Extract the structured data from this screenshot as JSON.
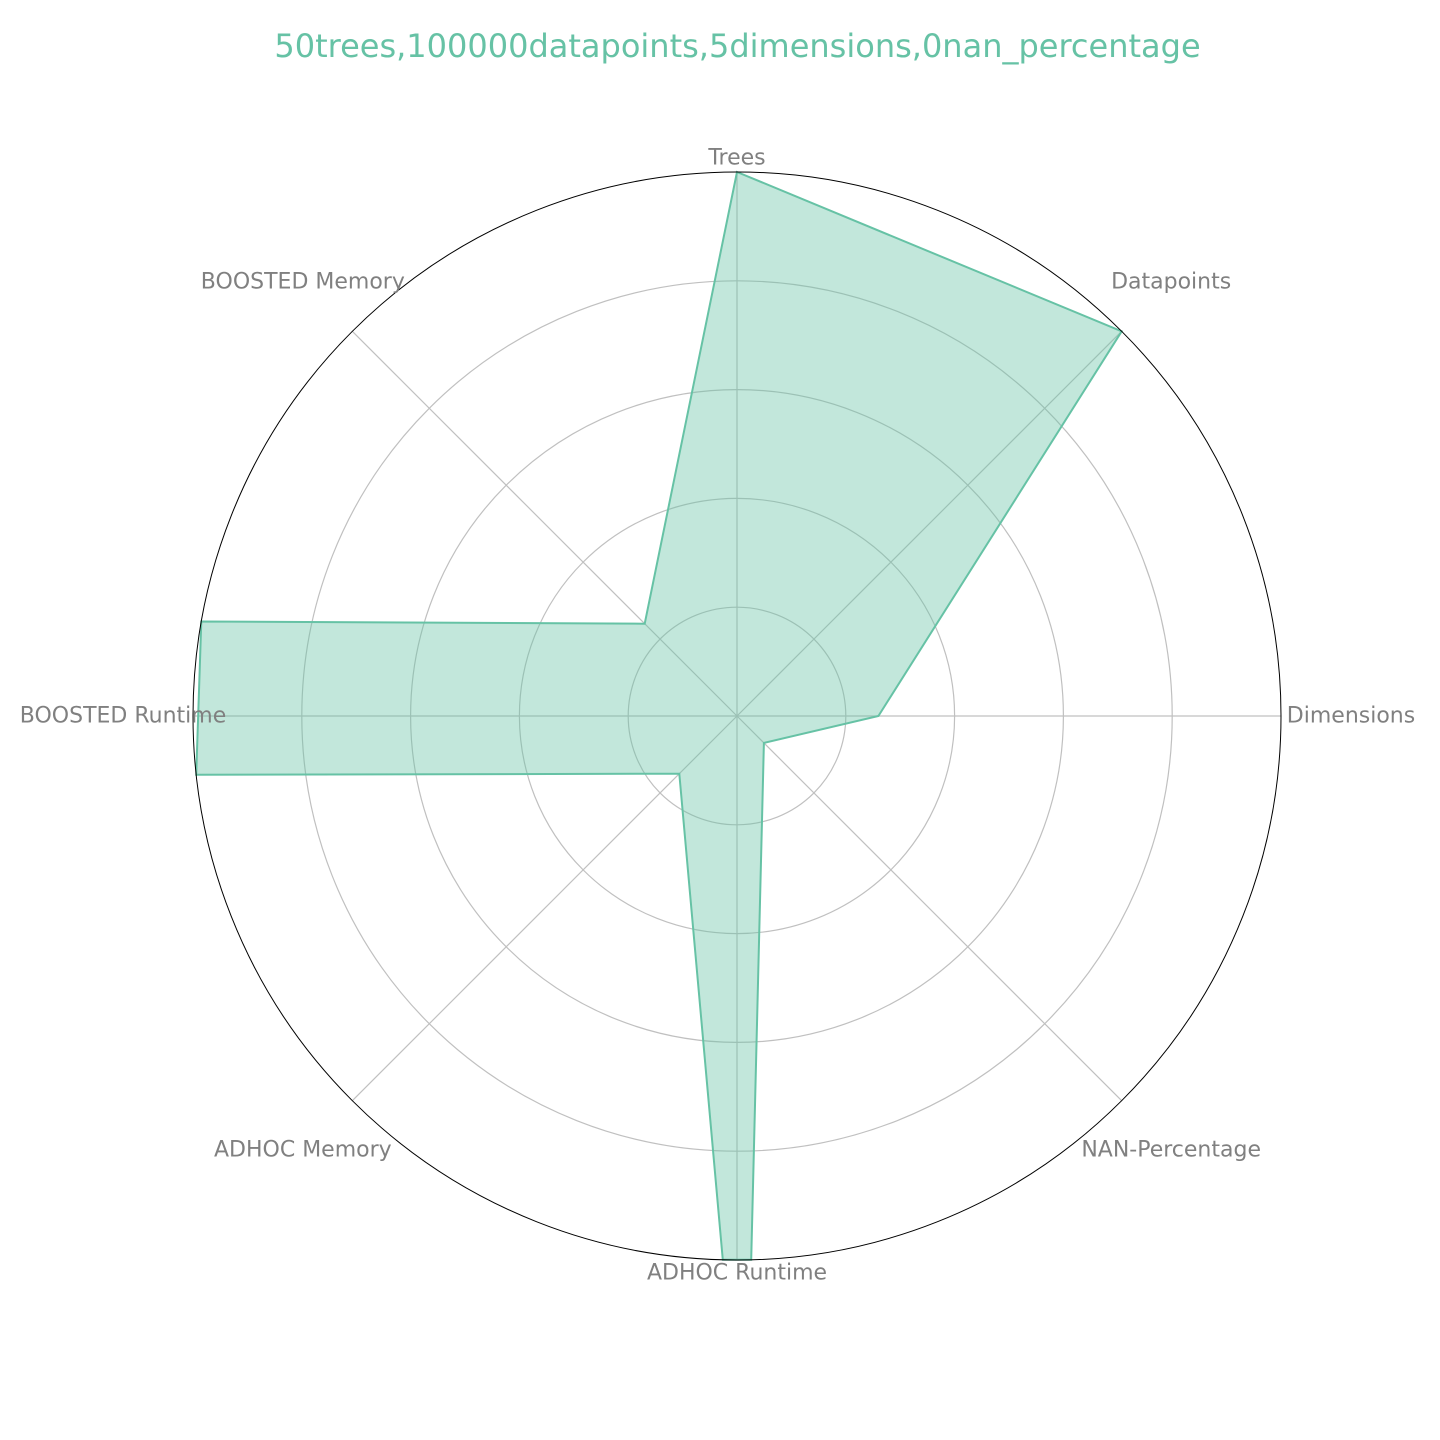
{
  "chart_data": {
    "type": "radar",
    "title": "50trees,100000datapoints,5dimensions,0nan_percentage",
    "axes": [
      "Trees",
      "Datapoints",
      "Dimensions",
      "NAN-Percentage",
      "ADHOC Runtime",
      "ADHOC Memory",
      "BOOSTED Runtime",
      "BOOSTED Memory"
    ],
    "rlim": [
      0,
      1
    ],
    "rings": [
      0.2,
      0.4,
      0.6,
      0.8,
      1.0
    ],
    "grid": true,
    "series": [
      {
        "values": [
          1.0,
          1.0,
          0.26,
          0.07,
          1.0,
          0.15,
          1.0,
          0.24
        ],
        "outline_points": [
          {
            "angle_deg": 0,
            "r": 1.0
          },
          {
            "angle_deg": 45,
            "r": 1.0
          },
          {
            "angle_deg": 90,
            "r": 0.26
          },
          {
            "angle_deg": 135,
            "r": 0.07
          },
          {
            "angle_deg": 178.5,
            "r": 1.0
          },
          {
            "angle_deg": 181.5,
            "r": 1.0
          },
          {
            "angle_deg": 225,
            "r": 0.15
          },
          {
            "angle_deg": 263.8,
            "r": 1.0
          },
          {
            "angle_deg": 280,
            "r": 1.0
          },
          {
            "angle_deg": 315,
            "r": 0.24
          }
        ],
        "color": "#66c2a5"
      }
    ],
    "title_color": "#66c2a5",
    "label_color": "#808080",
    "grid_color": "#c0c0c0",
    "outer_ring_color": "#000000"
  }
}
